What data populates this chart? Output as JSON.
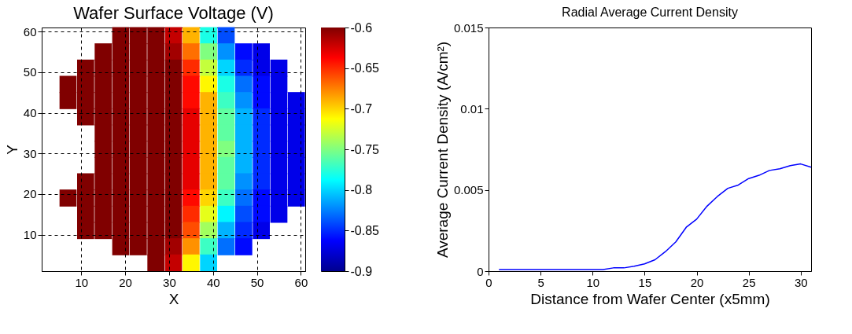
{
  "chart_data": [
    {
      "type": "scatter",
      "title": "Wafer Surface Voltage (V)",
      "xlabel": "X",
      "ylabel": "Y",
      "marker": "square",
      "x": [
        19,
        23,
        27,
        31,
        35,
        39,
        43,
        15,
        19,
        23,
        27,
        31,
        35,
        39,
        43,
        47,
        51,
        11,
        15,
        19,
        23,
        27,
        31,
        35,
        39,
        43,
        47,
        51,
        55,
        7,
        11,
        15,
        19,
        23,
        27,
        31,
        35,
        39,
        43,
        47,
        51,
        55,
        7,
        11,
        15,
        19,
        23,
        27,
        31,
        35,
        39,
        43,
        47,
        51,
        55,
        59,
        11,
        15,
        19,
        23,
        27,
        31,
        35,
        39,
        43,
        47,
        51,
        55,
        59,
        15,
        19,
        23,
        27,
        31,
        35,
        39,
        43,
        47,
        51,
        55,
        59,
        15,
        19,
        23,
        27,
        31,
        35,
        39,
        43,
        47,
        51,
        55,
        59,
        15,
        19,
        23,
        27,
        31,
        35,
        39,
        43,
        47,
        51,
        55,
        59,
        11,
        15,
        19,
        23,
        27,
        31,
        35,
        39,
        43,
        47,
        51,
        55,
        59,
        7,
        11,
        15,
        19,
        23,
        27,
        31,
        35,
        39,
        43,
        47,
        51,
        55,
        59,
        11,
        15,
        19,
        23,
        27,
        31,
        35,
        39,
        43,
        47,
        51,
        55,
        11,
        15,
        19,
        23,
        27,
        31,
        35,
        39,
        43,
        47,
        51,
        19,
        23,
        27,
        31,
        35,
        39,
        43,
        47,
        27,
        31,
        35,
        39
      ],
      "values": [
        59,
        59,
        59,
        59,
        59,
        59,
        59,
        55,
        55,
        55,
        55,
        55,
        55,
        55,
        55,
        55,
        55,
        51,
        51,
        51,
        51,
        51,
        51,
        51,
        51,
        51,
        51,
        51,
        51,
        47,
        47,
        47,
        47,
        47,
        47,
        47,
        47,
        47,
        47,
        47,
        47,
        47,
        43,
        43,
        43,
        43,
        43,
        43,
        43,
        43,
        43,
        43,
        43,
        43,
        43,
        43,
        39,
        39,
        39,
        39,
        39,
        39,
        39,
        39,
        39,
        39,
        39,
        39,
        39,
        35,
        35,
        35,
        35,
        35,
        35,
        35,
        35,
        35,
        35,
        35,
        35,
        31,
        31,
        31,
        31,
        31,
        31,
        31,
        31,
        31,
        31,
        31,
        31,
        27,
        27,
        27,
        27,
        27,
        27,
        27,
        27,
        27,
        27,
        27,
        27,
        23,
        23,
        23,
        23,
        23,
        23,
        23,
        23,
        23,
        23,
        23,
        23,
        23,
        19,
        19,
        19,
        19,
        19,
        19,
        19,
        19,
        19,
        19,
        19,
        19,
        19,
        19,
        15,
        15,
        15,
        15,
        15,
        15,
        15,
        15,
        15,
        15,
        15,
        15,
        11,
        11,
        11,
        11,
        11,
        11,
        11,
        11,
        11,
        11,
        11,
        7,
        7,
        7,
        7,
        7,
        7,
        7,
        7,
        3,
        3,
        3,
        3
      ],
      "cvalues": [
        -0.6,
        -0.6,
        -0.6,
        -0.62,
        -0.69,
        -0.78,
        -0.84,
        -0.6,
        -0.6,
        -0.6,
        -0.6,
        -0.61,
        -0.67,
        -0.75,
        -0.82,
        -0.86,
        -0.87,
        -0.6,
        -0.6,
        -0.6,
        -0.6,
        -0.6,
        -0.6,
        -0.65,
        -0.73,
        -0.8,
        -0.85,
        -0.87,
        -0.87,
        -0.6,
        -0.6,
        -0.6,
        -0.6,
        -0.6,
        -0.6,
        -0.6,
        -0.64,
        -0.71,
        -0.78,
        -0.83,
        -0.86,
        -0.87,
        -0.6,
        -0.6,
        -0.6,
        -0.6,
        -0.6,
        -0.6,
        -0.6,
        -0.64,
        -0.69,
        -0.77,
        -0.82,
        -0.86,
        -0.87,
        -0.87,
        -0.6,
        -0.6,
        -0.6,
        -0.6,
        -0.6,
        -0.6,
        -0.63,
        -0.69,
        -0.76,
        -0.81,
        -0.85,
        -0.87,
        -0.87,
        -0.6,
        -0.6,
        -0.6,
        -0.6,
        -0.6,
        -0.63,
        -0.69,
        -0.76,
        -0.81,
        -0.85,
        -0.87,
        -0.87,
        -0.6,
        -0.6,
        -0.6,
        -0.6,
        -0.6,
        -0.63,
        -0.69,
        -0.75,
        -0.81,
        -0.85,
        -0.87,
        -0.87,
        -0.6,
        -0.6,
        -0.6,
        -0.6,
        -0.6,
        -0.63,
        -0.69,
        -0.76,
        -0.81,
        -0.85,
        -0.87,
        -0.87,
        -0.6,
        -0.6,
        -0.6,
        -0.6,
        -0.6,
        -0.6,
        -0.63,
        -0.69,
        -0.76,
        -0.82,
        -0.85,
        -0.87,
        -0.87,
        -0.6,
        -0.6,
        -0.6,
        -0.6,
        -0.6,
        -0.6,
        -0.6,
        -0.64,
        -0.7,
        -0.77,
        -0.83,
        -0.86,
        -0.87,
        -0.87,
        -0.6,
        -0.6,
        -0.6,
        -0.6,
        -0.6,
        -0.6,
        -0.65,
        -0.72,
        -0.79,
        -0.84,
        -0.86,
        -0.87,
        -0.6,
        -0.6,
        -0.6,
        -0.6,
        -0.6,
        -0.6,
        -0.66,
        -0.74,
        -0.81,
        -0.85,
        -0.87,
        -0.6,
        -0.6,
        -0.6,
        -0.61,
        -0.68,
        -0.77,
        -0.83,
        -0.86,
        -0.6,
        -0.62,
        -0.71,
        -0.8
      ],
      "clim": [
        -0.9,
        -0.6
      ],
      "cticks": [
        -0.9,
        -0.85,
        -0.8,
        -0.75,
        -0.7,
        -0.65,
        -0.6
      ],
      "xlim": [
        1,
        61
      ],
      "xticks": [
        10,
        20,
        30,
        40,
        50,
        60
      ],
      "ylim": [
        1,
        61
      ],
      "yticks": [
        10,
        20,
        30,
        40,
        50,
        60
      ],
      "grid": true
    },
    {
      "type": "line",
      "title": "Radial Average Current Density",
      "xlabel": "Distance from Wafer Center (x5mm)",
      "ylabel": "Average Current Density (A/cm²)",
      "x": [
        1,
        2,
        3,
        4,
        5,
        6,
        7,
        8,
        9,
        10,
        11,
        12,
        13,
        14,
        15,
        16,
        17,
        18,
        19,
        20,
        21,
        22,
        23,
        24,
        25,
        26,
        27,
        28,
        29,
        30,
        31
      ],
      "series": [
        {
          "color": "#0000ff",
          "values": [
            0.0001,
            0.0001,
            0.0001,
            0.0001,
            0.0001,
            0.0001,
            0.0001,
            0.0001,
            0.0001,
            0.0001,
            0.0001,
            0.0002,
            0.0002,
            0.0003,
            0.00045,
            0.0007,
            0.0012,
            0.0018,
            0.0027,
            0.0032,
            0.004,
            0.0046,
            0.0051,
            0.0053,
            0.0057,
            0.0059,
            0.0062,
            0.0063,
            0.0065,
            0.0066,
            0.0064
          ]
        }
      ],
      "xlim": [
        0,
        31
      ],
      "xticks": [
        0,
        5,
        10,
        15,
        20,
        25,
        30
      ],
      "ylim": [
        0,
        0.015
      ],
      "yticks": [
        0,
        0.005,
        0.01,
        0.015
      ]
    }
  ]
}
